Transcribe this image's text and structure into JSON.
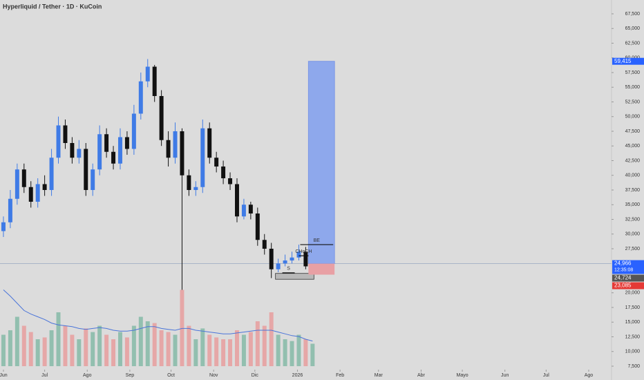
{
  "chart_data": {
    "type": "candlestick",
    "title": "Hyperliquid / Tether · 1D · KuCoin",
    "xlim": [
      -2.5,
      442.6
    ],
    "xticks": [
      {
        "value": 0,
        "label": "Jun"
      },
      {
        "value": 30,
        "label": "Jul"
      },
      {
        "value": 61,
        "label": "Ago"
      },
      {
        "value": 92,
        "label": "Sep"
      },
      {
        "value": 122,
        "label": "Oct"
      },
      {
        "value": 153,
        "label": "Nov"
      },
      {
        "value": 183,
        "label": "Dic"
      },
      {
        "value": 214,
        "label": "2026"
      },
      {
        "value": 245,
        "label": "Feb"
      },
      {
        "value": 273,
        "label": "Mar"
      },
      {
        "value": 304,
        "label": "Abr"
      },
      {
        "value": 334,
        "label": "Mayo"
      },
      {
        "value": 365,
        "label": "Jun"
      },
      {
        "value": 395,
        "label": "Jul"
      },
      {
        "value": 426,
        "label": "Ago"
      }
    ],
    "ylim": [
      7500,
      67500
    ],
    "yticks": [
      {
        "value": 67500,
        "label": "67,500"
      },
      {
        "value": 65000,
        "label": "65,000"
      },
      {
        "value": 62500,
        "label": "62,500"
      },
      {
        "value": 60000,
        "label": "60,000"
      },
      {
        "value": 57500,
        "label": "57,500"
      },
      {
        "value": 55000,
        "label": "55,000"
      },
      {
        "value": 52500,
        "label": "52,500"
      },
      {
        "value": 50000,
        "label": "50,000"
      },
      {
        "value": 47500,
        "label": "47,500"
      },
      {
        "value": 45000,
        "label": "45,000"
      },
      {
        "value": 42500,
        "label": "42,500"
      },
      {
        "value": 40000,
        "label": "40,000"
      },
      {
        "value": 37500,
        "label": "37,500"
      },
      {
        "value": 35000,
        "label": "35,000"
      },
      {
        "value": 32500,
        "label": "32,500"
      },
      {
        "value": 30000,
        "label": "30,000"
      },
      {
        "value": 27500,
        "label": "27,500"
      },
      {
        "value": 20000,
        "label": "20,000"
      },
      {
        "value": 17500,
        "label": "17,500"
      },
      {
        "value": 15000,
        "label": "15,000"
      },
      {
        "value": 12500,
        "label": "12,500"
      },
      {
        "value": 10000,
        "label": "10,000"
      },
      {
        "value": 7500,
        "label": "7,500"
      }
    ],
    "up_color": "#3f7be6",
    "down_color": "#111111",
    "x": [
      0,
      5,
      10,
      15,
      20,
      25,
      30,
      35,
      40,
      45,
      50,
      55,
      60,
      65,
      70,
      75,
      80,
      85,
      90,
      95,
      100,
      105,
      110,
      115,
      120,
      125,
      130,
      135,
      140,
      145,
      150,
      155,
      160,
      165,
      170,
      175,
      180,
      185,
      190,
      195,
      200,
      205,
      210,
      215,
      220,
      225
    ],
    "open": [
      30500,
      32000,
      36000,
      41000,
      38000,
      35500,
      38500,
      37500,
      43000,
      48500,
      45500,
      43000,
      44500,
      37500,
      41000,
      47000,
      44000,
      42000,
      46500,
      44500,
      50500,
      56000,
      58500,
      53500,
      46000,
      43000,
      47500,
      40000,
      37500,
      38000,
      48000,
      43000,
      41500,
      39500,
      38500,
      33000,
      35000,
      33500,
      29000,
      27500,
      24000,
      25000,
      25500,
      26000,
      27000,
      24500
    ],
    "high": [
      33000,
      37500,
      42000,
      42000,
      39000,
      39500,
      40000,
      44500,
      50000,
      49500,
      46500,
      46000,
      45500,
      42000,
      48500,
      48000,
      45000,
      48000,
      47500,
      52000,
      57500,
      59800,
      58800,
      54500,
      47500,
      49000,
      48000,
      41000,
      39000,
      49500,
      49000,
      44000,
      42500,
      40500,
      39500,
      36000,
      35500,
      34500,
      30000,
      28500,
      25800,
      26500,
      27000,
      28200,
      27800,
      25800
    ],
    "low": [
      29500,
      31000,
      35000,
      37000,
      34500,
      34500,
      36500,
      36500,
      42000,
      44500,
      42000,
      42000,
      36500,
      36500,
      40000,
      43000,
      41000,
      41000,
      43500,
      43500,
      49500,
      55000,
      52500,
      45000,
      41500,
      42000,
      20500,
      36500,
      36500,
      37000,
      42000,
      40500,
      38500,
      37500,
      32000,
      32500,
      32500,
      28000,
      26500,
      22500,
      23500,
      24500,
      25000,
      25500,
      24000,
      24000
    ],
    "close": [
      32000,
      36000,
      41000,
      38000,
      35500,
      38500,
      37500,
      43000,
      48500,
      45500,
      43000,
      44500,
      37500,
      41000,
      47000,
      44000,
      42000,
      46500,
      44500,
      50500,
      56000,
      58500,
      53500,
      46000,
      43000,
      47500,
      40000,
      37500,
      38000,
      48000,
      43000,
      41500,
      39500,
      38500,
      33000,
      35000,
      33500,
      29000,
      27500,
      24000,
      25000,
      25500,
      26000,
      27000,
      24500,
      24966
    ],
    "volume": {
      "ylim": [
        0,
        100
      ],
      "ma_color": "#4a74d9",
      "values": [
        35,
        40,
        55,
        45,
        38,
        30,
        32,
        40,
        60,
        45,
        35,
        30,
        42,
        38,
        45,
        35,
        30,
        38,
        32,
        45,
        55,
        50,
        48,
        40,
        38,
        35,
        85,
        45,
        30,
        42,
        35,
        32,
        30,
        30,
        40,
        35,
        38,
        50,
        45,
        60,
        35,
        30,
        28,
        35,
        30,
        25
      ],
      "ma": [
        85,
        78,
        70,
        62,
        58,
        55,
        52,
        48,
        46,
        45,
        44,
        42,
        41,
        42,
        43,
        42,
        40,
        39,
        39,
        40,
        42,
        44,
        44,
        42,
        41,
        40,
        42,
        42,
        40,
        39,
        38,
        37,
        36,
        36,
        37,
        38,
        39,
        40,
        40,
        40,
        38,
        36,
        34,
        33,
        30,
        28
      ]
    },
    "position": {
      "x": [
        222,
        241
      ],
      "entry": 24966,
      "target": 59415,
      "stop": 23085
    },
    "annotations": [
      {
        "label": "BE",
        "x": [
          216,
          240
        ],
        "y": 28200
      },
      {
        "label": "CHoCH",
        "x": [
          215,
          222
        ],
        "y": 26300
      },
      {
        "label": "S",
        "x": [
          203,
          212
        ],
        "y": 23400
      }
    ],
    "zone": {
      "x": [
        198,
        226
      ],
      "y": [
        22300,
        23300
      ]
    },
    "price_labels": [
      {
        "value": 59415,
        "label": "59,415",
        "color": "#2962ff"
      },
      {
        "value": 24966,
        "label": "24,966",
        "color": "#2962ff"
      },
      {
        "value": 24724,
        "label": "24,724",
        "color": "#555555"
      },
      {
        "value": 23085,
        "label": "23,085",
        "color": "#e53935"
      }
    ],
    "countdown": "12:35:08"
  }
}
